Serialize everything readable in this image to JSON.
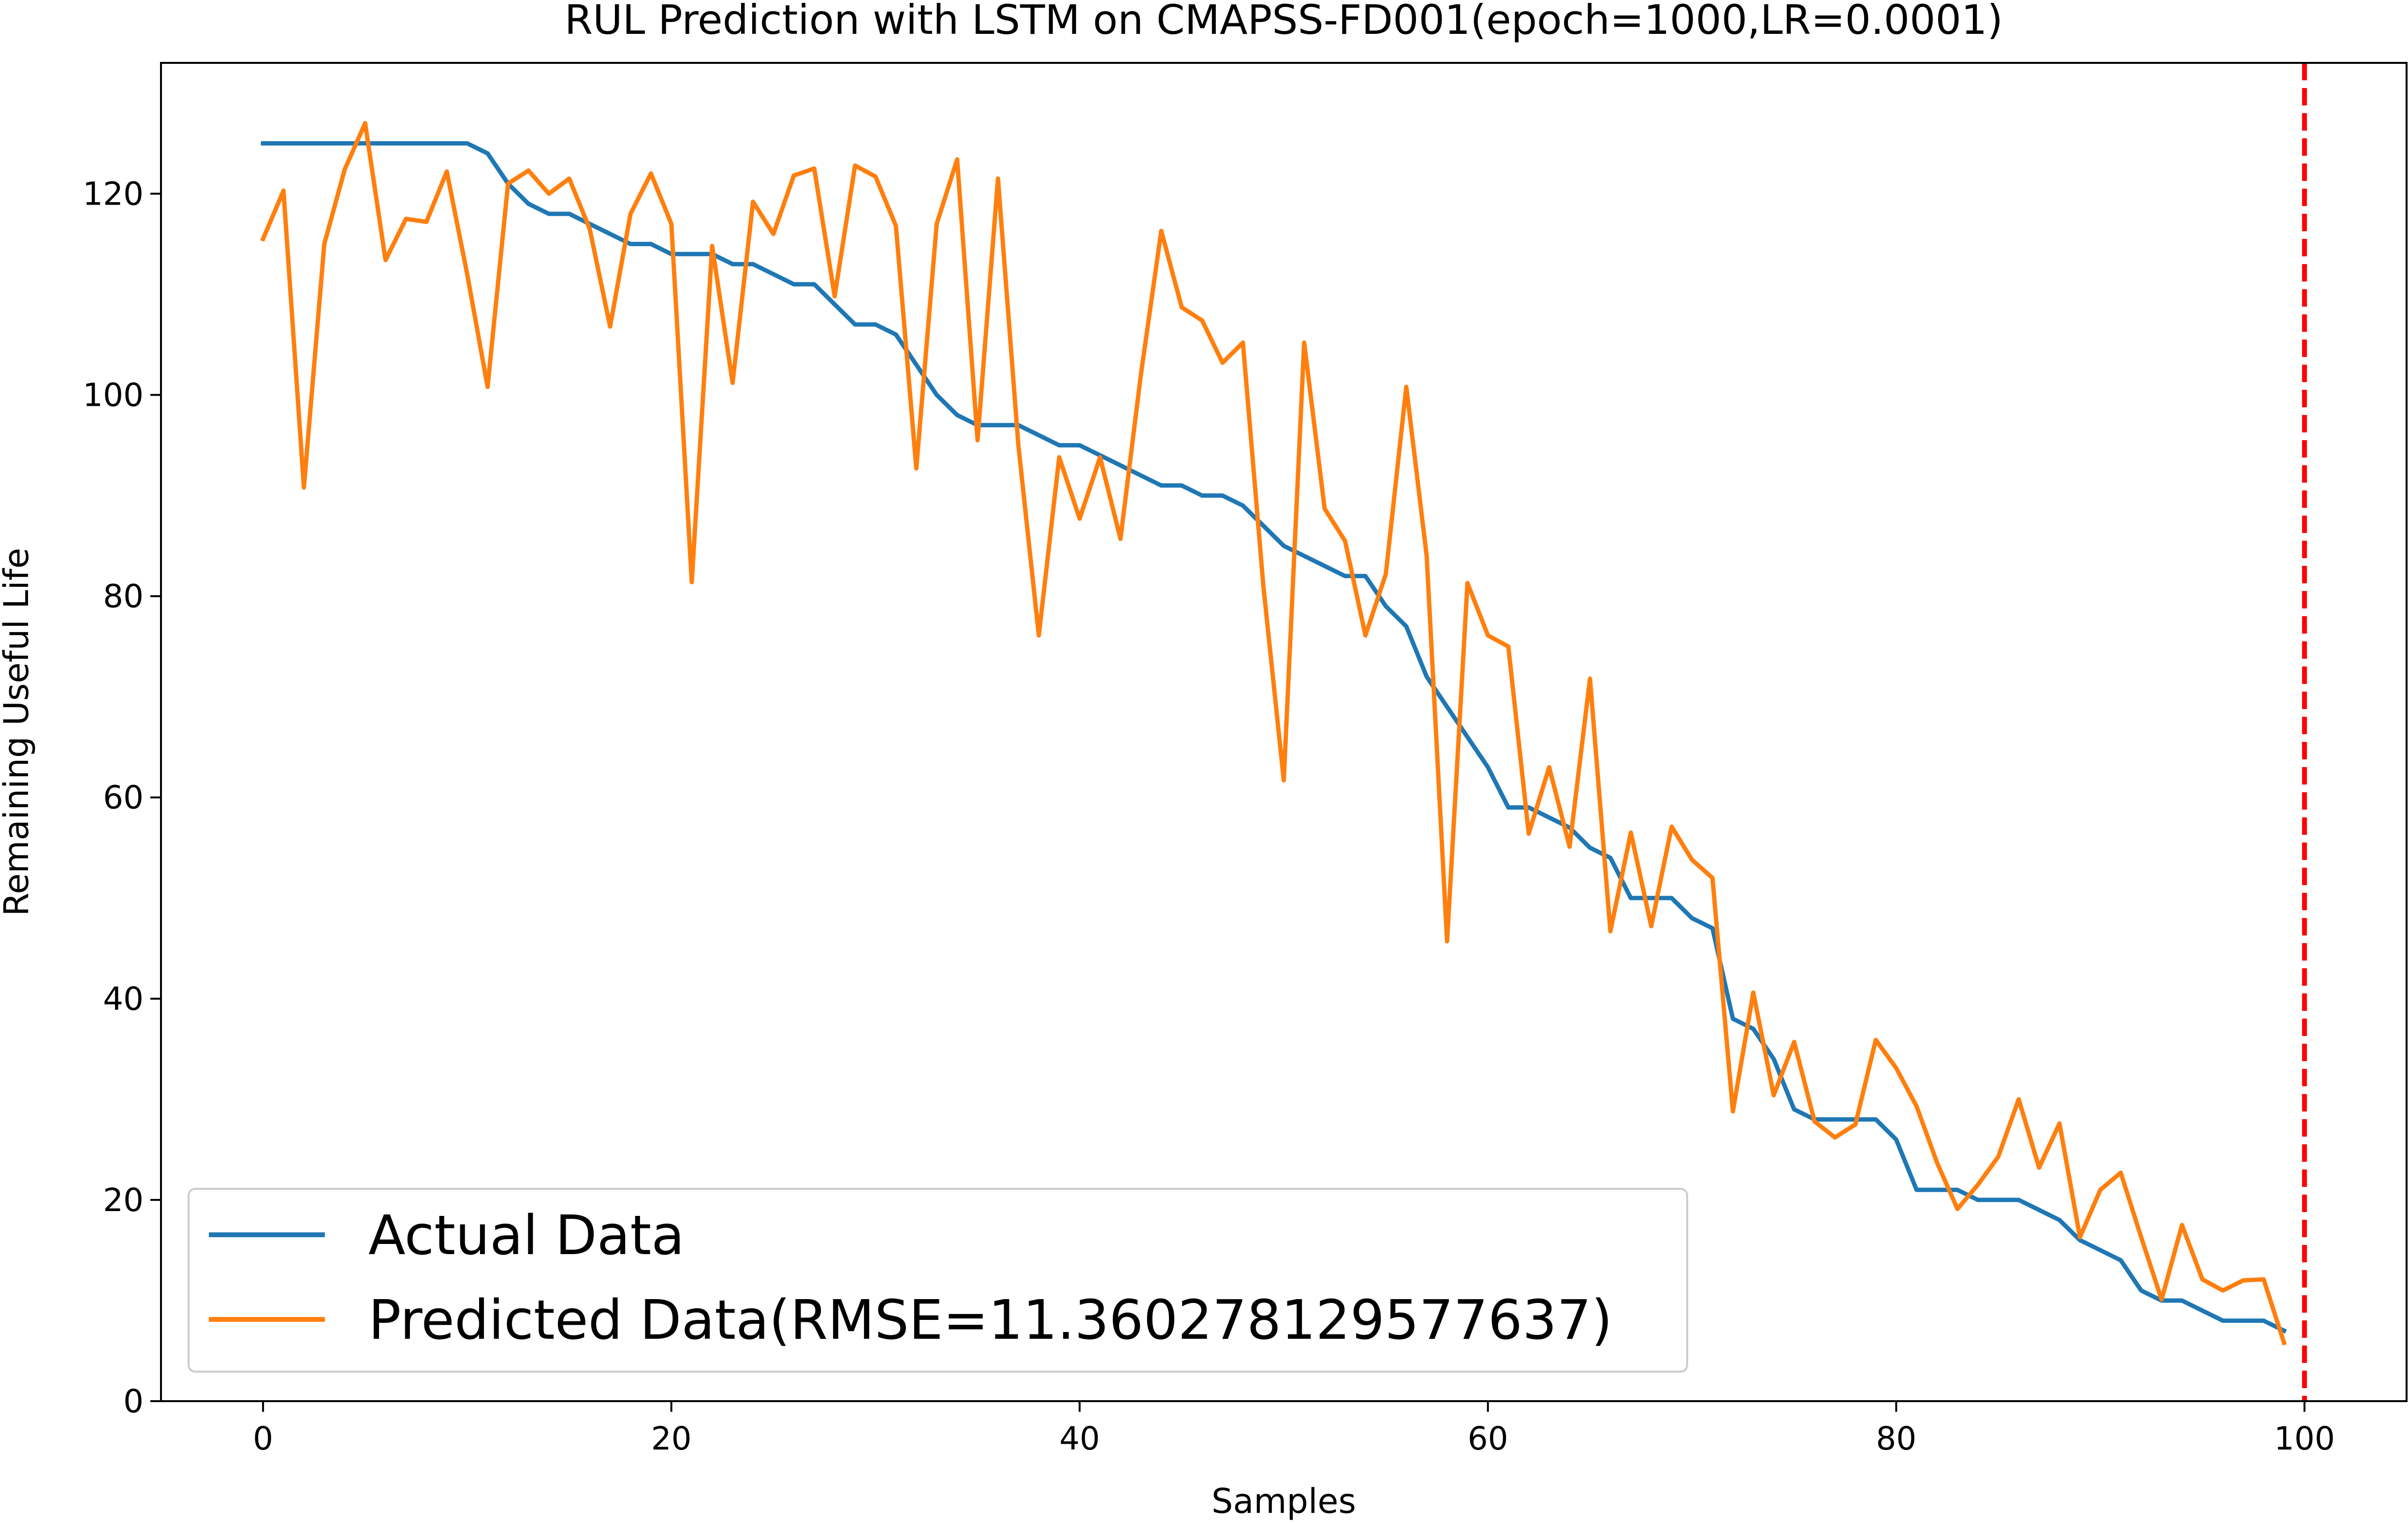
{
  "colors": {
    "actual": "#1f77b4",
    "predicted": "#ff7f0e",
    "threshold": "#ff0000"
  },
  "chart_data": {
    "type": "line",
    "title": "RUL Prediction with LSTM on CMAPSS-FD001(epoch=1000,LR=0.0001)",
    "xlabel": "Samples",
    "ylabel": "Remaining Useful Life",
    "xlim": [
      -5,
      105
    ],
    "ylim": [
      0,
      133
    ],
    "xticks": [
      0,
      20,
      40,
      60,
      80,
      100
    ],
    "yticks": [
      0,
      20,
      40,
      60,
      80,
      100,
      120
    ],
    "grid": false,
    "legend": "lower-left",
    "vertical_line": {
      "x": 100,
      "style": "dashed",
      "color": "#ff0000"
    },
    "series": [
      {
        "name": "Actual Data",
        "color": "#1f77b4",
        "values": [
          125,
          125,
          125,
          125,
          125,
          125,
          125,
          125,
          125,
          125,
          125,
          124,
          121,
          119,
          118,
          118,
          117,
          116,
          115,
          115,
          114,
          114,
          114,
          113,
          113,
          112,
          111,
          111,
          109,
          107,
          107,
          106,
          103,
          100,
          98,
          97,
          97,
          97,
          96,
          95,
          95,
          94,
          93,
          92,
          91,
          91,
          90,
          90,
          89,
          87,
          85,
          84,
          83,
          82,
          82,
          79,
          77,
          72,
          69,
          66,
          63,
          59,
          59,
          58,
          57,
          55,
          54,
          50,
          50,
          50,
          48,
          47,
          38,
          37,
          34,
          29,
          28,
          28,
          28,
          28,
          26,
          21,
          21,
          21,
          20,
          20,
          20,
          19,
          18,
          16,
          15,
          14,
          11,
          10,
          10,
          9,
          8,
          8,
          8,
          7
        ]
      },
      {
        "name": "Predicted Data(RMSE=11.360278129577637)",
        "color": "#ff7f0e",
        "values": [
          115.5,
          120.3,
          90.8,
          115,
          122.4,
          127,
          113.4,
          117.5,
          117.2,
          122.2,
          112,
          100.8,
          121,
          122.3,
          120,
          121.5,
          116.5,
          106.8,
          118,
          122,
          117,
          81.4,
          114.8,
          101.2,
          119.2,
          116,
          121.8,
          122.5,
          109.8,
          122.8,
          121.7,
          116.8,
          92.7,
          117,
          123.4,
          95.5,
          121.5,
          95,
          76.1,
          93.8,
          87.7,
          93.8,
          85.7,
          102,
          116.3,
          108.7,
          107.4,
          103.2,
          105.2,
          81,
          61.7,
          105.2,
          88.7,
          85.5,
          76.1,
          82.2,
          100.8,
          84,
          45.7,
          81.3,
          76.1,
          75,
          56.4,
          63,
          55.1,
          71.8,
          46.7,
          56.5,
          47.2,
          57.1,
          53.8,
          52,
          28.8,
          40.6,
          30.4,
          35.7,
          27.8,
          26.2,
          27.5,
          35.9,
          33.1,
          29.3,
          23.7,
          19.1,
          21.5,
          24.3,
          30,
          23.2,
          27.6,
          16.3,
          21,
          22.7,
          16.3,
          10.1,
          17.5,
          12.1,
          11,
          12,
          12.1,
          5.8
        ]
      }
    ]
  }
}
